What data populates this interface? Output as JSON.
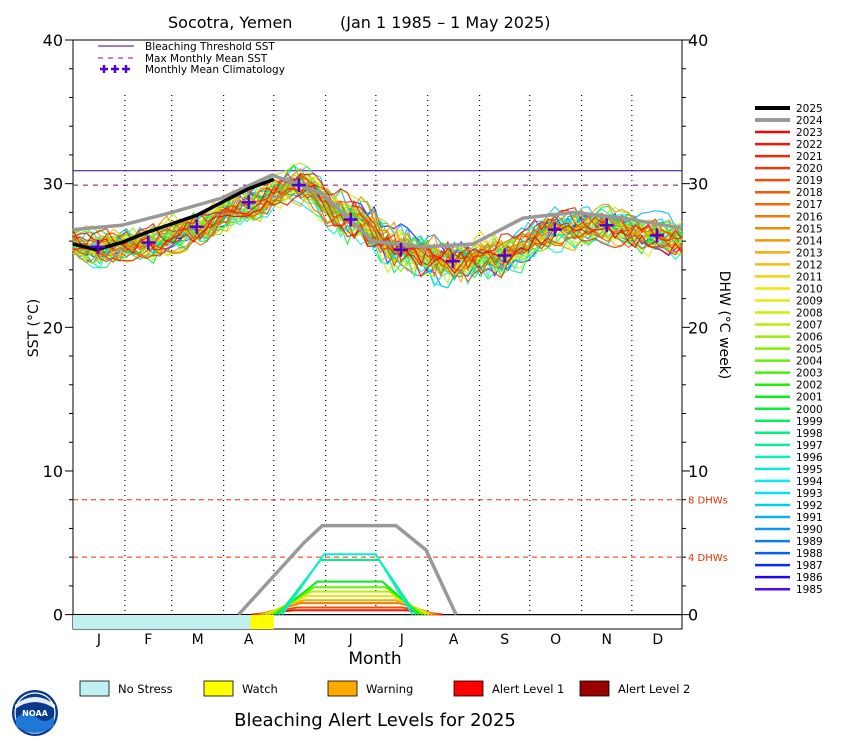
{
  "chart_data": {
    "type": "line",
    "title": {
      "location": "Socotra, Yemen",
      "period": "(Jan 1 1985 – 1 May 2025)"
    },
    "ylabel_left": "SST (°C)",
    "ylabel_right": "DHW (°C week)",
    "xlabel": "Month",
    "ylim": [
      -1,
      40
    ],
    "y_ticks": [
      0,
      10,
      20,
      30,
      40
    ],
    "categories": [
      "J",
      "F",
      "M",
      "A",
      "M",
      "J",
      "J",
      "A",
      "S",
      "O",
      "N",
      "D"
    ],
    "bleaching_threshold_sst": 30.9,
    "max_monthly_mean_sst": 29.9,
    "dhw_reference_lines": [
      {
        "value": 8,
        "label": "8 DHWs"
      },
      {
        "value": 4,
        "label": "4 DHWs"
      }
    ],
    "monthly_mean_climatology": [
      25.6,
      25.9,
      27.0,
      28.7,
      29.9,
      27.5,
      25.4,
      24.6,
      25.0,
      26.8,
      27.1,
      26.4
    ],
    "sst_2025": {
      "name": "2025",
      "day": [
        1,
        15,
        30,
        45,
        60,
        75,
        90,
        105,
        121
      ],
      "values": [
        25.8,
        25.4,
        25.9,
        26.6,
        27.2,
        27.8,
        28.7,
        29.6,
        30.3
      ]
    },
    "sst_2024": {
      "name": "2024",
      "day": [
        1,
        30,
        60,
        90,
        120,
        150,
        180,
        210,
        240,
        270,
        300,
        330,
        365
      ],
      "values": [
        26.8,
        27.1,
        28.0,
        29.0,
        30.6,
        29.3,
        26.0,
        25.6,
        25.8,
        27.6,
        28.0,
        27.6,
        26.9
      ]
    },
    "dhw_2024": {
      "name": "2024",
      "day": [
        100,
        139,
        150,
        194,
        212,
        230
      ],
      "values": [
        0,
        5.0,
        6.2,
        6.2,
        4.5,
        0
      ]
    },
    "legend_top": [
      "Bleaching Threshold SST",
      "Max Monthly Mean SST",
      "Monthly Mean Climatology"
    ],
    "legend_years": [
      "2025",
      "2024",
      "2023",
      "2022",
      "2021",
      "2020",
      "2019",
      "2018",
      "2017",
      "2016",
      "2015",
      "2014",
      "2013",
      "2012",
      "2011",
      "2010",
      "2009",
      "2008",
      "2007",
      "2006",
      "2005",
      "2004",
      "2003",
      "2002",
      "2001",
      "2000",
      "1999",
      "1998",
      "1997",
      "1996",
      "1995",
      "1994",
      "1993",
      "1992",
      "1991",
      "1990",
      "1989",
      "1988",
      "1987",
      "1986",
      "1985"
    ],
    "alert_bar": {
      "segments": [
        {
          "level": "No Stress",
          "start_day": 1,
          "end_day": 107
        },
        {
          "level": "Watch",
          "start_day": 107,
          "end_day": 121
        }
      ]
    },
    "alert_legend": [
      {
        "label": "No Stress",
        "color": "#bff1f1"
      },
      {
        "label": "Watch",
        "color": "#ffff00"
      },
      {
        "label": "Warning",
        "color": "#ffaa00"
      },
      {
        "label": "Alert Level 1",
        "color": "#ff0000"
      },
      {
        "label": "Alert Level 2",
        "color": "#990000"
      }
    ],
    "alert_title": "Bleaching Alert Levels for 2025"
  },
  "logo": {
    "text": "NOAA"
  },
  "colors": {
    "threshold": "#330099",
    "mmm": "#880088",
    "climatology": "#5500cc",
    "dhw_ref": "#dd3300",
    "year_2025": "#000000",
    "year_2024": "#999999"
  }
}
